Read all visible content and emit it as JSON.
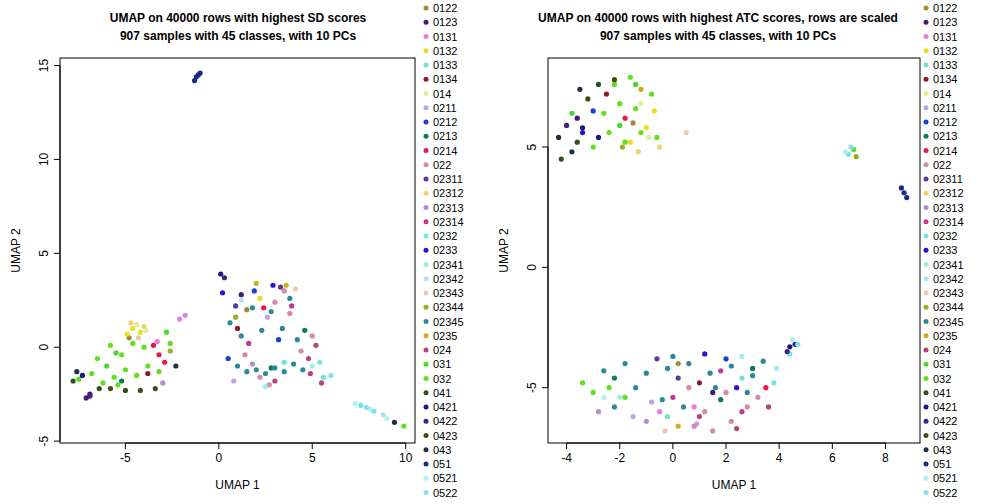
{
  "chart_data": [
    {
      "type": "scatter",
      "title": "UMAP on 40000 rows with highest SD scores",
      "subtitle": "907 samples with 45 classes, with 10 PCs",
      "x_label": "UMAP 1",
      "y_label": "UMAP 2",
      "xlim": [
        -8.5,
        10.5
      ],
      "ylim": [
        -5.1,
        15.4
      ],
      "xticks": [
        -5,
        0,
        5,
        10
      ],
      "yticks": [
        -5,
        0,
        5,
        10,
        15
      ],
      "marker": "circle",
      "series": [
        {
          "name": "0122",
          "color": "#a08a3c",
          "x": [
            1.5,
            -4.8
          ],
          "values": [
            2.0,
            0.5
          ]
        },
        {
          "name": "0123",
          "color": "#4b1a6e",
          "x": [
            -7.1,
            -6.9,
            1.2
          ],
          "values": [
            -2.7,
            -2.5,
            2.8
          ]
        },
        {
          "name": "0131",
          "color": "#e27ee0",
          "x": [
            -2.1,
            -1.8,
            -3.3
          ],
          "values": [
            1.5,
            1.7,
            0.3
          ]
        },
        {
          "name": "0132",
          "color": "#e8e020",
          "x": [
            -4.6,
            -4.2,
            -4.9,
            2.2
          ],
          "values": [
            1.0,
            0.8,
            0.7,
            2.6
          ]
        },
        {
          "name": "0133",
          "color": "#6ee6c8",
          "x": [
            3.5,
            5.6
          ],
          "values": [
            -0.8,
            -1.6
          ]
        },
        {
          "name": "0134",
          "color": "#8b1a2a",
          "x": [
            -3.8,
            1.0
          ],
          "values": [
            -1.4,
            1.0
          ]
        },
        {
          "name": "014",
          "color": "#d8f0a0",
          "x": [
            -4.4,
            -3.9
          ],
          "values": [
            1.2,
            0.9
          ]
        },
        {
          "name": "0211",
          "color": "#c0a0e8",
          "x": [
            0.8,
            2.6
          ],
          "values": [
            -1.8,
            1.6
          ]
        },
        {
          "name": "0212",
          "color": "#1a3fd8",
          "x": [
            1.9,
            3.2,
            0.5
          ],
          "values": [
            3.0,
            0.4,
            -0.6
          ]
        },
        {
          "name": "0213",
          "color": "#0a7a5a",
          "x": [
            2.8,
            4.6,
            -5.2
          ],
          "values": [
            -1.1,
            0.9,
            -1.8
          ]
        },
        {
          "name": "0214",
          "color": "#e8184a",
          "x": [
            -3.2,
            -2.9,
            -3.5,
            2.4
          ],
          "values": [
            -0.4,
            -0.8,
            0.1,
            2.1
          ]
        },
        {
          "name": "022",
          "color": "#d48aa8",
          "x": [
            1.4,
            2.2,
            3.0,
            3.8,
            4.4,
            5.0,
            2.7,
            3.5
          ],
          "values": [
            -0.4,
            -1.6,
            2.4,
            1.8,
            -0.2,
            0.6,
            -2.0,
            3.0
          ]
        },
        {
          "name": "02311",
          "color": "#5a3a9a",
          "x": [
            3.3,
            0.9
          ],
          "values": [
            3.2,
            2.2
          ]
        },
        {
          "name": "02312",
          "color": "#f0d070",
          "x": [
            -4.7,
            -4.0
          ],
          "values": [
            1.3,
            1.1
          ]
        },
        {
          "name": "02313",
          "color": "#b090d0",
          "x": [
            1.8,
            -3.0
          ],
          "values": [
            -0.9,
            -1.9
          ]
        },
        {
          "name": "02314",
          "color": "#c03890",
          "x": [
            3.9,
            1.6,
            4.9
          ],
          "values": [
            2.2,
            0.2,
            -1.4
          ]
        },
        {
          "name": "0232",
          "color": "#70e8e0",
          "x": [
            7.6,
            8.3,
            5.4
          ],
          "values": [
            -3.1,
            -3.4,
            -0.8
          ]
        },
        {
          "name": "0233",
          "color": "#3010d8",
          "x": [
            2.9,
            0.2
          ],
          "values": [
            3.3,
            2.9
          ]
        },
        {
          "name": "02341",
          "color": "#a0f0e0",
          "x": [
            5.0,
            1.2
          ],
          "values": [
            -1.0,
            2.5
          ]
        },
        {
          "name": "02342",
          "color": "#a8e8f0",
          "x": [
            8.8,
            2.5
          ],
          "values": [
            -3.6,
            -2.1
          ]
        },
        {
          "name": "02343",
          "color": "#f0c8b0",
          "x": [
            4.1,
            -4.3
          ],
          "values": [
            3.1,
            0.5
          ]
        },
        {
          "name": "02344",
          "color": "#98b020",
          "x": [
            -2.6,
            0.9
          ],
          "values": [
            -0.2,
            1.6
          ]
        },
        {
          "name": "02345",
          "color": "#2a8a9a",
          "x": [
            1.0,
            1.5,
            2.0,
            2.5,
            3.0,
            3.5,
            4.0,
            4.5,
            1.2,
            2.3,
            3.4,
            4.2,
            1.8,
            2.8,
            0.6,
            3.8
          ],
          "values": [
            -1.0,
            -1.3,
            -1.2,
            -1.4,
            -1.1,
            -1.3,
            -0.9,
            -1.2,
            0.6,
            0.9,
            1.0,
            0.4,
            2.1,
            1.9,
            1.3,
            2.6
          ]
        },
        {
          "name": "0235",
          "color": "#c8b020",
          "x": [
            2.0,
            3.6
          ],
          "values": [
            3.4,
            3.3
          ]
        },
        {
          "name": "024",
          "color": "#b0487a",
          "x": [
            4.8,
            5.2,
            3.0,
            5.5
          ],
          "values": [
            -0.6,
            0.1,
            -1.8,
            -1.9
          ]
        },
        {
          "name": "031",
          "color": "#48d830",
          "x": [
            -6.0,
            -5.5,
            -2.8
          ],
          "values": [
            -1.0,
            -0.3,
            0.8
          ]
        },
        {
          "name": "032",
          "color": "#60e020",
          "x": [
            -7.5,
            -6.8,
            -6.2,
            -5.6,
            -5.0,
            -4.4,
            -3.8,
            -3.2,
            -6.5,
            -5.8,
            -5.2,
            -4.6,
            -2.6,
            -5.4,
            9.9,
            -4.0
          ],
          "values": [
            -1.7,
            -1.4,
            -1.9,
            -1.6,
            -1.2,
            -1.5,
            -1.0,
            -1.3,
            -0.6,
            0.1,
            -0.4,
            0.2,
            0.2,
            -2.0,
            -4.2,
            0.0
          ]
        },
        {
          "name": "041",
          "color": "#305020",
          "x": [
            -7.8,
            -6.4,
            -5.0
          ],
          "values": [
            -1.8,
            -2.2,
            -2.3
          ]
        },
        {
          "name": "0421",
          "color": "#1a1a80",
          "x": [
            0.1,
            -7.3
          ],
          "values": [
            3.9,
            -1.5
          ]
        },
        {
          "name": "0422",
          "color": "#40208a",
          "x": [
            -6.9,
            0.3
          ],
          "values": [
            -2.6,
            3.7
          ]
        },
        {
          "name": "0423",
          "color": "#405010",
          "x": [
            -4.2,
            -3.4,
            -5.8
          ],
          "values": [
            -2.3,
            -2.2,
            -2.2
          ]
        },
        {
          "name": "043",
          "color": "#203040",
          "x": [
            -2.3,
            -7.6,
            9.4
          ],
          "values": [
            -1.0,
            -1.3,
            -4.0
          ]
        },
        {
          "name": "051",
          "color": "#1a2a8a",
          "x": [
            -1.3,
            -1.2,
            -1.1,
            -1.0
          ],
          "values": [
            14.2,
            14.4,
            14.5,
            14.6
          ]
        },
        {
          "name": "0521",
          "color": "#b0f0f0",
          "x": [
            7.3,
            8.1,
            9.0
          ],
          "values": [
            -3.0,
            -3.3,
            -3.8
          ]
        },
        {
          "name": "0522",
          "color": "#88e0f0",
          "x": [
            7.9,
            6.0
          ],
          "values": [
            -3.2,
            -1.5
          ]
        }
      ]
    },
    {
      "type": "scatter",
      "title": "UMAP on 40000 rows with highest ATC scores, rows are scaled",
      "subtitle": "907 samples with 45 classes, with 10 PCs",
      "x_label": "UMAP 1",
      "y_label": "UMAP 2",
      "xlim": [
        -4.7,
        9.3
      ],
      "ylim": [
        -7.3,
        8.7
      ],
      "xticks": [
        -4,
        -2,
        0,
        2,
        4,
        6,
        8
      ],
      "yticks": [
        -5,
        0,
        5
      ],
      "marker": "circle",
      "series": [
        {
          "name": "0122",
          "color": "#a08a3c",
          "x": [
            0.2,
            -1.5
          ],
          "values": [
            -4.0,
            6.0
          ]
        },
        {
          "name": "0123",
          "color": "#4b1a6e",
          "x": [
            1.5,
            -3.6
          ],
          "values": [
            -5.2,
            6.2
          ]
        },
        {
          "name": "0131",
          "color": "#e27ee0",
          "x": [
            -0.5,
            0.8
          ],
          "values": [
            -6.0,
            -5.8
          ]
        },
        {
          "name": "0132",
          "color": "#e8e020",
          "x": [
            -1.0,
            -0.7,
            -1.6
          ],
          "values": [
            5.8,
            6.5,
            5.2
          ]
        },
        {
          "name": "0133",
          "color": "#6ee6c8",
          "x": [
            2.6,
            -0.2
          ],
          "values": [
            -4.6,
            -6.2
          ]
        },
        {
          "name": "0134",
          "color": "#8b1a2a",
          "x": [
            -2.5,
            1.0
          ],
          "values": [
            7.2,
            -4.8
          ]
        },
        {
          "name": "014",
          "color": "#d8f0a0",
          "x": [
            -0.9,
            -1.2
          ],
          "values": [
            5.4,
            6.8
          ]
        },
        {
          "name": "0211",
          "color": "#c0a0e8",
          "x": [
            -1.5,
            -0.8,
            0.9
          ],
          "values": [
            -6.2,
            -5.6,
            -6.5
          ]
        },
        {
          "name": "0212",
          "color": "#1a3fd8",
          "x": [
            -3.0,
            2.0
          ],
          "values": [
            6.5,
            -3.8
          ]
        },
        {
          "name": "0213",
          "color": "#0a7a5a",
          "x": [
            -2.2,
            1.8,
            3.0
          ],
          "values": [
            -4.6,
            -5.5,
            -4.2
          ]
        },
        {
          "name": "0214",
          "color": "#e8184a",
          "x": [
            -1.8,
            3.5
          ],
          "values": [
            6.2,
            -5.0
          ]
        },
        {
          "name": "022",
          "color": "#d48aa8",
          "x": [
            0.8,
            1.5,
            2.2,
            2.8,
            1.2,
            2.0,
            3.2,
            0.6
          ],
          "values": [
            -6.6,
            -6.8,
            -6.4,
            -5.8,
            -6.0,
            -5.2,
            -5.4,
            -5.0
          ]
        },
        {
          "name": "02311",
          "color": "#5a3a9a",
          "x": [
            0.2,
            -0.6
          ],
          "values": [
            -4.6,
            -3.8
          ]
        },
        {
          "name": "02312",
          "color": "#f0d070",
          "x": [
            -1.3,
            -0.5
          ],
          "values": [
            4.8,
            5.0
          ]
        },
        {
          "name": "02313",
          "color": "#b090d0",
          "x": [
            -1.0,
            -2.8
          ],
          "values": [
            -6.4,
            -6.0
          ]
        },
        {
          "name": "02314",
          "color": "#c03890",
          "x": [
            1.8,
            2.6,
            0.0
          ],
          "values": [
            -4.3,
            -6.0,
            -5.4
          ]
        },
        {
          "name": "0232",
          "color": "#70e8e0",
          "x": [
            6.6,
            4.4,
            3.8
          ],
          "values": [
            4.7,
            -3.6,
            -4.8
          ]
        },
        {
          "name": "0233",
          "color": "#3010d8",
          "x": [
            -3.4,
            1.2,
            2.4
          ],
          "values": [
            5.6,
            -3.6,
            -5.0
          ]
        },
        {
          "name": "02341",
          "color": "#a0f0e0",
          "x": [
            6.8,
            -2.0
          ],
          "values": [
            4.9,
            -5.4
          ]
        },
        {
          "name": "02342",
          "color": "#a8e8f0",
          "x": [
            2.6,
            3.9
          ],
          "values": [
            -3.7,
            -4.2
          ]
        },
        {
          "name": "02343",
          "color": "#f0c8b0",
          "x": [
            -0.3,
            0.5
          ],
          "values": [
            -6.8,
            5.6
          ]
        },
        {
          "name": "02344",
          "color": "#98b020",
          "x": [
            -1.9,
            6.9
          ],
          "values": [
            5.0,
            4.6
          ]
        },
        {
          "name": "02345",
          "color": "#2a8a9a",
          "x": [
            -2.6,
            -1.8,
            -1.0,
            -0.2,
            0.6,
            1.4,
            2.2,
            3.0,
            -1.4,
            -0.4,
            0.4,
            1.6,
            2.8,
            -2.2,
            3.4,
            0.0
          ],
          "values": [
            -4.3,
            -4.0,
            -4.4,
            -4.2,
            -4.0,
            -4.4,
            -4.1,
            -4.5,
            -5.0,
            -5.5,
            -5.8,
            -5.0,
            -5.2,
            -5.8,
            -3.9,
            -3.7
          ]
        },
        {
          "name": "0235",
          "color": "#c8b020",
          "x": [
            -1.2,
            0.2
          ],
          "values": [
            7.4,
            -6.6
          ]
        },
        {
          "name": "024",
          "color": "#b0487a",
          "x": [
            1.0,
            2.4,
            3.6
          ],
          "values": [
            -6.2,
            -6.7,
            -5.8
          ]
        },
        {
          "name": "031",
          "color": "#48d830",
          "x": [
            -2.0,
            -1.4,
            -3.8
          ],
          "values": [
            5.9,
            7.6,
            6.4
          ]
        },
        {
          "name": "032",
          "color": "#60e020",
          "x": [
            -3.0,
            -2.4,
            -1.8,
            -1.2,
            -0.6,
            -2.6,
            -2.0,
            -1.4,
            -0.8,
            -2.2,
            -1.6,
            -3.4,
            -3.0,
            -2.4,
            -1.8,
            6.8
          ],
          "values": [
            5.0,
            5.6,
            5.2,
            5.6,
            5.4,
            6.4,
            6.8,
            6.6,
            7.2,
            7.6,
            7.9,
            -4.8,
            -5.2,
            -5.0,
            -5.4,
            4.9
          ]
        },
        {
          "name": "041",
          "color": "#305020",
          "x": [
            -4.2,
            -3.6,
            -2.8
          ],
          "values": [
            4.5,
            5.2,
            7.6
          ]
        },
        {
          "name": "0421",
          "color": "#1a1a80",
          "x": [
            -3.4,
            -2.8,
            4.4
          ],
          "values": [
            5.8,
            5.4,
            -3.3
          ]
        },
        {
          "name": "0422",
          "color": "#40208a",
          "x": [
            -4.0,
            4.3
          ],
          "values": [
            5.9,
            -3.5
          ]
        },
        {
          "name": "0423",
          "color": "#405010",
          "x": [
            -3.2,
            -2.2
          ],
          "values": [
            7.0,
            7.8
          ]
        },
        {
          "name": "043",
          "color": "#203040",
          "x": [
            -4.3,
            -3.5,
            -3.8
          ],
          "values": [
            5.4,
            7.4,
            4.8
          ]
        },
        {
          "name": "051",
          "color": "#1a2a8a",
          "x": [
            8.6,
            8.7,
            8.8,
            4.6
          ],
          "values": [
            3.3,
            3.1,
            2.9,
            -3.2
          ]
        },
        {
          "name": "0521",
          "color": "#b0f0f0",
          "x": [
            6.5,
            4.5,
            -2.6
          ],
          "values": [
            4.8,
            -3.0,
            -5.4
          ]
        },
        {
          "name": "0522",
          "color": "#88e0f0",
          "x": [
            6.7,
            4.7
          ],
          "values": [
            5.0,
            -3.2
          ]
        }
      ]
    }
  ]
}
